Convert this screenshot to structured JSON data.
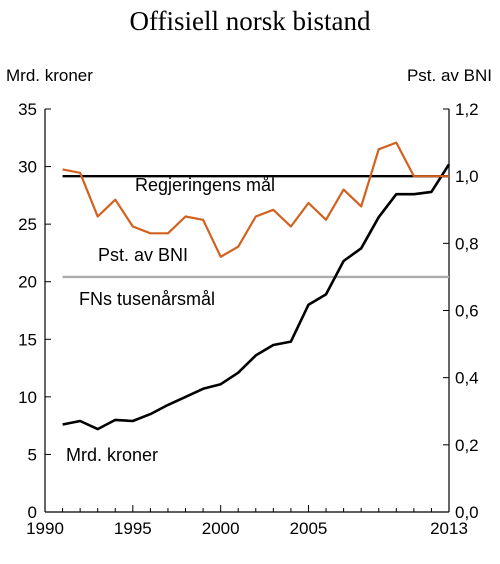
{
  "chart_data": {
    "type": "line",
    "title": "Offisiell norsk bistand",
    "ylabel_left": "Mrd. kroner",
    "ylabel_right": "Pst. av BNI",
    "xlim": [
      1990,
      2013
    ],
    "ylim_left": [
      0,
      35
    ],
    "ylim_right": [
      0,
      1.2
    ],
    "x_ticks": [
      1990,
      1995,
      2000,
      2005,
      2013
    ],
    "x_minor_ticks": [
      1991,
      1992,
      1993,
      1994,
      1996,
      1997,
      1998,
      1999,
      2001,
      2002,
      2003,
      2004,
      2006,
      2007,
      2008,
      2009,
      2010,
      2011,
      2012
    ],
    "y_ticks_left": [
      "0",
      "5",
      "10",
      "15",
      "20",
      "25",
      "30",
      "35"
    ],
    "y_ticks_right": [
      "0,0",
      "0,2",
      "0,4",
      "0,6",
      "0,8",
      "1,0",
      "1,2"
    ],
    "grid": false,
    "series": [
      {
        "name": "Mrd. kroner",
        "axis": "left",
        "color": "#000000",
        "x": [
          1991,
          1992,
          1993,
          1994,
          1995,
          1996,
          1997,
          1998,
          1999,
          2000,
          2001,
          2002,
          2003,
          2004,
          2005,
          2006,
          2007,
          2008,
          2009,
          2010,
          2011,
          2012,
          2013
        ],
        "values": [
          7.6,
          7.9,
          7.2,
          8.0,
          7.9,
          8.5,
          9.3,
          10.0,
          10.7,
          11.1,
          12.1,
          13.6,
          14.5,
          14.8,
          18.0,
          18.9,
          21.8,
          22.9,
          25.6,
          27.6,
          27.6,
          27.8,
          30.2
        ]
      },
      {
        "name": "Pst. av BNI",
        "axis": "right",
        "color": "#D2611E",
        "x": [
          1991,
          1992,
          1993,
          1994,
          1995,
          1996,
          1997,
          1998,
          1999,
          2000,
          2001,
          2002,
          2003,
          2004,
          2005,
          2006,
          2007,
          2008,
          2009,
          2010,
          2011,
          2012,
          2013
        ],
        "values": [
          1.02,
          1.01,
          0.88,
          0.93,
          0.85,
          0.83,
          0.83,
          0.88,
          0.87,
          0.76,
          0.79,
          0.88,
          0.9,
          0.85,
          0.92,
          0.87,
          0.96,
          0.91,
          1.08,
          1.1,
          1.0,
          1.0,
          1.0
        ]
      }
    ],
    "reference_lines": [
      {
        "name": "Regjeringens mål",
        "axis": "right",
        "value": 1.0,
        "color": "#000000"
      },
      {
        "name": "FNs tusenårsmål",
        "axis": "right",
        "value": 0.7,
        "color": "#AAAAAA"
      }
    ]
  }
}
